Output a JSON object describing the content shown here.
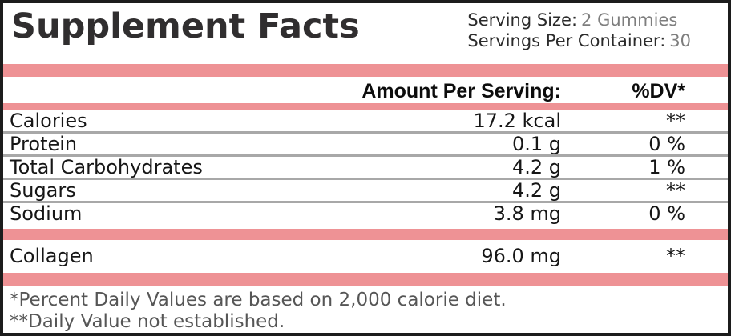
{
  "label": {
    "title": "Supplement Facts",
    "serving": {
      "size_label": "Serving Size:",
      "size_value": "2 Gummies",
      "container_label": "Servings Per Container:",
      "container_value": "30"
    },
    "columns": {
      "amount_header": "Amount Per Serving:",
      "dv_header": "%DV*"
    },
    "nutrients": [
      {
        "name": "Calories",
        "amount": "17.2 kcal",
        "dv": "**"
      },
      {
        "name": "Protein",
        "amount": "0.1 g",
        "dv": "0 %"
      },
      {
        "name": "Total Carbohydrates",
        "amount": "4.2 g",
        "dv": "1 %"
      },
      {
        "name": "Sugars",
        "amount": "4.2 g",
        "dv": "**"
      },
      {
        "name": "Sodium",
        "amount": "3.8 mg",
        "dv": "0 %"
      }
    ],
    "ingredients": [
      {
        "name": "Collagen",
        "amount": "96.0 mg",
        "dv": "**"
      }
    ],
    "footnotes": [
      "*Percent Daily Values are based on 2,000 calorie diet.",
      "**Daily Value not established."
    ],
    "colors": {
      "accent_pink": "#ee9295",
      "separator_gray": "#a8a8a8",
      "border_black": "#1c1c1c",
      "text_dark": "#161616",
      "value_gray": "#7e7e7e",
      "footnote_gray": "#565656"
    }
  }
}
